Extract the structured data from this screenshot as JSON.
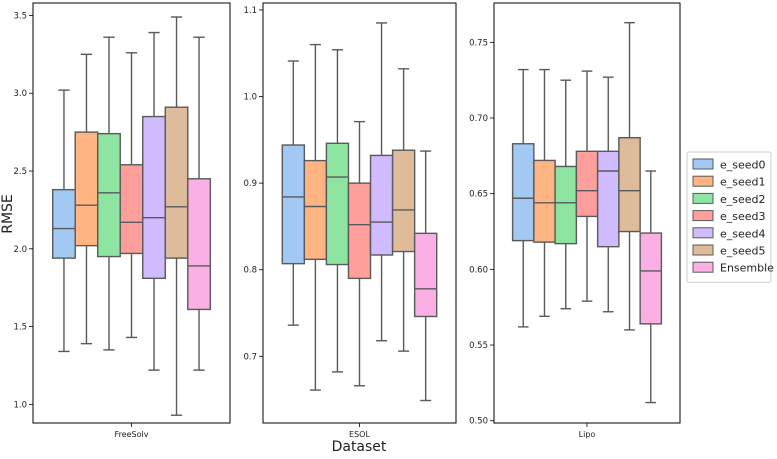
{
  "chart_data": {
    "type": "box",
    "ylabel": "RMSE",
    "xlabel": "Dataset",
    "series_names": [
      "e_seed0",
      "e_seed1",
      "e_seed2",
      "e_seed3",
      "e_seed4",
      "e_seed5",
      "Ensemble"
    ],
    "colors": [
      "#a1c9f4",
      "#ffb482",
      "#8de5a1",
      "#ff9f9b",
      "#d0bbff",
      "#debb9b",
      "#fab0e4"
    ],
    "legend_position": "center-right",
    "panels": [
      {
        "dataset": "FreeSolv",
        "ylim": [
          0.88,
          3.58
        ],
        "yticks": [
          1.0,
          1.5,
          2.0,
          2.5,
          3.0,
          3.5
        ],
        "ytick_labels": [
          "1.0",
          "1.5",
          "2.0",
          "2.5",
          "3.0",
          "3.5"
        ],
        "boxes": [
          {
            "whislo": 1.34,
            "q1": 1.94,
            "med": 2.13,
            "q3": 2.38,
            "whishi": 3.02
          },
          {
            "whislo": 1.39,
            "q1": 2.02,
            "med": 2.28,
            "q3": 2.75,
            "whishi": 3.25
          },
          {
            "whislo": 1.35,
            "q1": 1.95,
            "med": 2.36,
            "q3": 2.74,
            "whishi": 3.36
          },
          {
            "whislo": 1.43,
            "q1": 1.97,
            "med": 2.17,
            "q3": 2.54,
            "whishi": 3.26
          },
          {
            "whislo": 1.22,
            "q1": 1.81,
            "med": 2.2,
            "q3": 2.85,
            "whishi": 3.39
          },
          {
            "whislo": 0.93,
            "q1": 1.94,
            "med": 2.27,
            "q3": 2.91,
            "whishi": 3.49
          },
          {
            "whislo": 1.22,
            "q1": 1.61,
            "med": 1.89,
            "q3": 2.45,
            "whishi": 3.36
          }
        ]
      },
      {
        "dataset": "ESOL",
        "ylim": [
          0.623,
          1.108
        ],
        "yticks": [
          0.7,
          0.8,
          0.9,
          1.0,
          1.1
        ],
        "ytick_labels": [
          "0.7",
          "0.8",
          "0.9",
          "1.0",
          "1.1"
        ],
        "boxes": [
          {
            "whislo": 0.736,
            "q1": 0.807,
            "med": 0.884,
            "q3": 0.944,
            "whishi": 1.041
          },
          {
            "whislo": 0.661,
            "q1": 0.812,
            "med": 0.873,
            "q3": 0.926,
            "whishi": 1.06
          },
          {
            "whislo": 0.682,
            "q1": 0.806,
            "med": 0.907,
            "q3": 0.946,
            "whishi": 1.054
          },
          {
            "whislo": 0.666,
            "q1": 0.79,
            "med": 0.852,
            "q3": 0.9,
            "whishi": 0.971
          },
          {
            "whislo": 0.718,
            "q1": 0.817,
            "med": 0.855,
            "q3": 0.932,
            "whishi": 1.085
          },
          {
            "whislo": 0.706,
            "q1": 0.821,
            "med": 0.869,
            "q3": 0.938,
            "whishi": 1.032
          },
          {
            "whislo": 0.649,
            "q1": 0.746,
            "med": 0.778,
            "q3": 0.842,
            "whishi": 0.937
          }
        ]
      },
      {
        "dataset": "Lipo",
        "ylim": [
          0.4985,
          0.776
        ],
        "yticks": [
          0.5,
          0.55,
          0.6,
          0.65,
          0.7,
          0.75
        ],
        "ytick_labels": [
          "0.50",
          "0.55",
          "0.60",
          "0.65",
          "0.70",
          "0.75"
        ],
        "boxes": [
          {
            "whislo": 0.562,
            "q1": 0.619,
            "med": 0.647,
            "q3": 0.683,
            "whishi": 0.732
          },
          {
            "whislo": 0.569,
            "q1": 0.618,
            "med": 0.644,
            "q3": 0.672,
            "whishi": 0.732
          },
          {
            "whislo": 0.574,
            "q1": 0.617,
            "med": 0.644,
            "q3": 0.668,
            "whishi": 0.725
          },
          {
            "whislo": 0.579,
            "q1": 0.635,
            "med": 0.652,
            "q3": 0.678,
            "whishi": 0.731
          },
          {
            "whislo": 0.572,
            "q1": 0.615,
            "med": 0.665,
            "q3": 0.678,
            "whishi": 0.727
          },
          {
            "whislo": 0.56,
            "q1": 0.625,
            "med": 0.652,
            "q3": 0.687,
            "whishi": 0.763
          },
          {
            "whislo": 0.512,
            "q1": 0.564,
            "med": 0.599,
            "q3": 0.624,
            "whishi": 0.665
          }
        ]
      }
    ]
  }
}
